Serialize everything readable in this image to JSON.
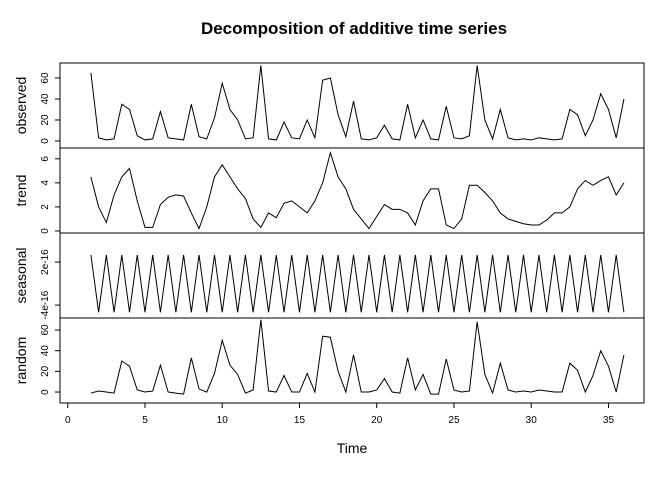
{
  "chart_data": [
    {
      "type": "line",
      "title": "Decomposition of additive time series",
      "y_label": "observed",
      "color": "#000000",
      "xlim": [
        -0.5,
        37.3
      ],
      "ylim": [
        -6.7,
        74.3
      ],
      "yticks": [
        0,
        20,
        40,
        60
      ],
      "x": [
        1.5,
        2,
        2.5,
        3,
        3.5,
        4,
        4.5,
        5,
        5.5,
        6,
        6.5,
        7,
        7.5,
        8,
        8.5,
        9,
        9.5,
        10,
        10.5,
        11,
        11.5,
        12,
        12.5,
        13,
        13.5,
        14,
        14.5,
        15,
        15.5,
        16,
        16.5,
        17,
        17.5,
        18,
        18.5,
        19,
        19.5,
        20,
        20.5,
        21,
        21.5,
        22,
        22.5,
        23,
        23.5,
        24,
        24.5,
        25,
        25.5,
        26,
        26.5,
        27,
        27.5,
        28,
        28.5,
        29,
        29.5,
        30,
        30.5,
        31,
        31.5,
        32,
        32.5,
        33,
        33.5,
        34,
        34.5,
        35,
        35.5,
        36
      ],
      "values": [
        65,
        3,
        1,
        2,
        35,
        30,
        5,
        1,
        2,
        28,
        3,
        2,
        1,
        35,
        4,
        2,
        22,
        55,
        30,
        20,
        2,
        3,
        72,
        2,
        1,
        18,
        3,
        2,
        20,
        3,
        58,
        60,
        25,
        4,
        38,
        2,
        1,
        3,
        15,
        2,
        1,
        35,
        3,
        20,
        2,
        1,
        33,
        3,
        2,
        5,
        72,
        20,
        2,
        30,
        3,
        1,
        2,
        1,
        3,
        2,
        1,
        2,
        30,
        25,
        5,
        20,
        45,
        30,
        3,
        40
      ]
    },
    {
      "type": "line",
      "y_label": "trend",
      "color": "#000000",
      "xlim": [
        -0.5,
        37.3
      ],
      "ylim": [
        -0.17,
        6.9
      ],
      "yticks": [
        0,
        2,
        4,
        6
      ],
      "x": [
        1.5,
        2,
        2.5,
        3,
        3.5,
        4,
        4.5,
        5,
        5.5,
        6,
        6.5,
        7,
        7.5,
        8,
        8.5,
        9,
        9.5,
        10,
        10.5,
        11,
        11.5,
        12,
        12.5,
        13,
        13.5,
        14,
        14.5,
        15,
        15.5,
        16,
        16.5,
        17,
        17.5,
        18,
        18.5,
        19,
        19.5,
        20,
        20.5,
        21,
        21.5,
        22,
        22.5,
        23,
        23.5,
        24,
        24.5,
        25,
        25.5,
        26,
        26.5,
        27,
        27.5,
        28,
        28.5,
        29,
        29.5,
        30,
        30.5,
        31,
        31.5,
        32,
        32.5,
        33,
        33.5,
        34,
        34.5,
        35,
        35.5,
        36
      ],
      "values": [
        4.5,
        2,
        0.7,
        3,
        4.5,
        5.2,
        2.5,
        0.3,
        0.3,
        2.2,
        2.8,
        3,
        2.9,
        1.5,
        0.2,
        2,
        4.5,
        5.5,
        4.5,
        3.5,
        2.7,
        1,
        0.3,
        1.5,
        1.1,
        2.3,
        2.5,
        2,
        1.5,
        2.5,
        4,
        6.5,
        4.5,
        3.5,
        1.8,
        1,
        0.2,
        1.2,
        2.2,
        1.8,
        1.8,
        1.5,
        0.5,
        2.5,
        3.5,
        3.5,
        0.5,
        0.2,
        1,
        3.8,
        3.8,
        3.2,
        2.5,
        1.5,
        1,
        0.8,
        0.6,
        0.5,
        0.5,
        0.9,
        1.5,
        1.5,
        2,
        3.5,
        4.2,
        3.8,
        4.2,
        4.5,
        3,
        4
      ]
    },
    {
      "type": "line",
      "y_label": "seasonal",
      "color": "#000000",
      "xlim": [
        -0.5,
        37.3
      ],
      "ylim": [
        -5.8e-16,
        6.05e-16
      ],
      "yticks": [
        -4e-16,
        2e-16
      ],
      "x": [
        1.5,
        2,
        2.5,
        3,
        3.5,
        4,
        4.5,
        5,
        5.5,
        6,
        6.5,
        7,
        7.5,
        8,
        8.5,
        9,
        9.5,
        10,
        10.5,
        11,
        11.5,
        12,
        12.5,
        13,
        13.5,
        14,
        14.5,
        15,
        15.5,
        16,
        16.5,
        17,
        17.5,
        18,
        18.5,
        19,
        19.5,
        20,
        20.5,
        21,
        21.5,
        22,
        22.5,
        23,
        23.5,
        24,
        24.5,
        25,
        25.5,
        26,
        26.5,
        27,
        27.5,
        28,
        28.5,
        29,
        29.5,
        30,
        30.5,
        31,
        31.5,
        32,
        32.5,
        33,
        33.5,
        34,
        34.5,
        35,
        35.5,
        36
      ],
      "values": [
        3e-16,
        -5e-16,
        3e-16,
        -5e-16,
        3e-16,
        -5e-16,
        3e-16,
        -5e-16,
        3e-16,
        -5e-16,
        3e-16,
        -5e-16,
        3e-16,
        -5e-16,
        3e-16,
        -5e-16,
        3e-16,
        -5e-16,
        3e-16,
        -5e-16,
        3e-16,
        -5e-16,
        3e-16,
        -5e-16,
        3e-16,
        -5e-16,
        3e-16,
        -5e-16,
        3e-16,
        -5e-16,
        3e-16,
        -5e-16,
        3e-16,
        -5e-16,
        3e-16,
        -5e-16,
        3e-16,
        -5e-16,
        3e-16,
        -5e-16,
        3e-16,
        -5e-16,
        3e-16,
        -5e-16,
        3e-16,
        -5e-16,
        3e-16,
        -5e-16,
        3e-16,
        -5e-16,
        3e-16,
        -5e-16,
        3e-16,
        -5e-16,
        3e-16,
        -5e-16,
        3e-16,
        -5e-16,
        3e-16,
        -5e-16,
        3e-16,
        -5e-16,
        3e-16,
        -5e-16,
        3e-16,
        -5e-16,
        3e-16,
        -5e-16,
        3e-16,
        -5e-16
      ]
    },
    {
      "type": "line",
      "y_label": "random",
      "x_label": "Time",
      "color": "#000000",
      "xlim": [
        -0.5,
        37.3
      ],
      "ylim": [
        -10.6,
        71.6
      ],
      "yticks": [
        0,
        20,
        40,
        60
      ],
      "xticks": [
        0,
        5,
        10,
        15,
        20,
        25,
        30,
        35
      ],
      "x": [
        1.5,
        2,
        2.5,
        3,
        3.5,
        4,
        4.5,
        5,
        5.5,
        6,
        6.5,
        7,
        7.5,
        8,
        8.5,
        9,
        9.5,
        10,
        10.5,
        11,
        11.5,
        12,
        12.5,
        13,
        13.5,
        14,
        14.5,
        15,
        15.5,
        16,
        16.5,
        17,
        17.5,
        18,
        18.5,
        19,
        19.5,
        20,
        20.5,
        21,
        21.5,
        22,
        22.5,
        23,
        23.5,
        24,
        24.5,
        25,
        25.5,
        26,
        26.5,
        27,
        27.5,
        28,
        28.5,
        29,
        29.5,
        30,
        30.5,
        31,
        31.5,
        32,
        32.5,
        33,
        33.5,
        34,
        34.5,
        35,
        35.5,
        36
      ],
      "values": [
        -1,
        1,
        0,
        -1,
        30,
        25,
        2,
        0,
        1,
        26,
        0,
        -1,
        -2,
        33,
        3,
        0,
        18,
        50,
        26,
        17,
        -1,
        2,
        70,
        1,
        0,
        16,
        0,
        0,
        18,
        0,
        54,
        53,
        20,
        0,
        36,
        0,
        0,
        2,
        13,
        0,
        -1,
        33,
        2,
        17,
        -2,
        -2,
        32,
        2,
        0,
        1,
        68,
        17,
        -1,
        28,
        2,
        0,
        1,
        0,
        2,
        1,
        0,
        0,
        28,
        21,
        0,
        16,
        40,
        25,
        0,
        36
      ]
    }
  ]
}
